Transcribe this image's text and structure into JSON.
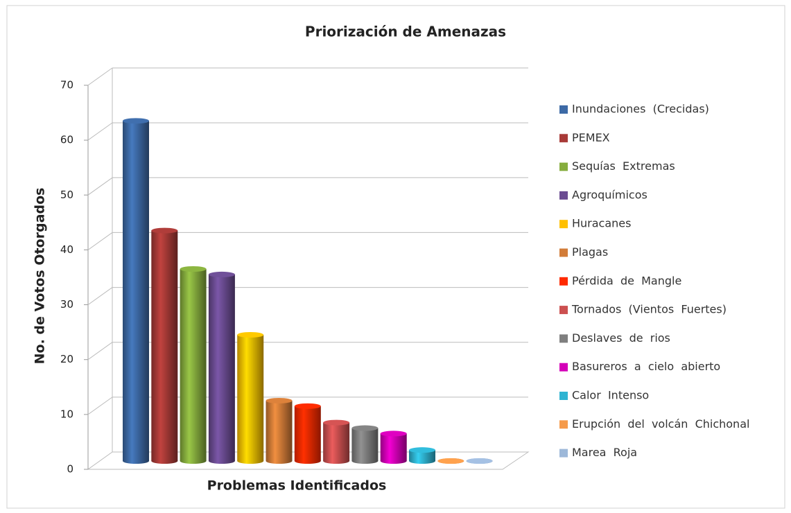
{
  "chart_data": {
    "type": "bar3d",
    "title": "Priorización de Amenazas",
    "y_label": "No. de Votos Otorgados",
    "x_label": "Problemas Identificados",
    "ylim": [
      0,
      70
    ],
    "yticks": [
      0,
      10,
      20,
      30,
      40,
      50,
      60,
      70
    ],
    "grid": true,
    "legend": "right",
    "series": [
      {
        "name": "Inundaciones  (Crecidas)",
        "color": "#3d6aa6",
        "values": [
          62
        ]
      },
      {
        "name": "PEMEX",
        "color": "#a83a37",
        "values": [
          42
        ]
      },
      {
        "name": "Sequías  Extremas",
        "color": "#86ad3e",
        "values": [
          35
        ]
      },
      {
        "name": "Agroquímicos",
        "color": "#6b4c92",
        "values": [
          34
        ]
      },
      {
        "name": "Huracanes",
        "color": "#ffc000",
        "values": [
          23
        ]
      },
      {
        "name": "Plagas",
        "color": "#d27c38",
        "values": [
          11
        ]
      },
      {
        "name": "Pérdida  de  Mangle",
        "color": "#ff2a00",
        "values": [
          10
        ]
      },
      {
        "name": "Tornados  (Vientos  Fuertes)",
        "color": "#cc5050",
        "values": [
          7
        ]
      },
      {
        "name": "Deslaves  de  rios",
        "color": "#7f7f7f",
        "values": [
          6
        ]
      },
      {
        "name": "Basureros  a  cielo  abierto",
        "color": "#d400b8",
        "values": [
          5
        ]
      },
      {
        "name": "Calor  Intenso",
        "color": "#2fb4d2",
        "values": [
          2
        ]
      },
      {
        "name": "Erupción  del  volcán  Chichonal",
        "color": "#f59a4a",
        "values": [
          0
        ]
      },
      {
        "name": "Marea  Roja",
        "color": "#9db8d9",
        "values": [
          0
        ]
      }
    ]
  }
}
